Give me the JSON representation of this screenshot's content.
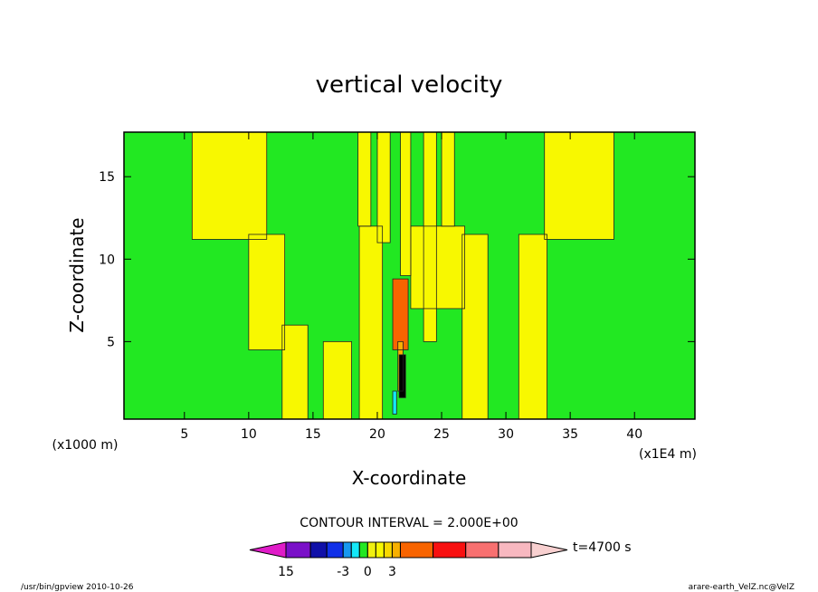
{
  "chart_data": {
    "type": "heatmap",
    "title": "vertical velocity",
    "xlabel": "X-coordinate",
    "ylabel": "Z-coordinate",
    "x_unit": "(x1E4 m)",
    "y_unit": "(x1000 m)",
    "xlim": [
      0.3,
      44.7
    ],
    "ylim": [
      0.3,
      17.7
    ],
    "x_ticks": [
      5,
      10,
      15,
      20,
      25,
      30,
      35,
      40
    ],
    "y_ticks": [
      5,
      10,
      15
    ],
    "contour_interval_label": "CONTOUR INTERVAL = 2.000E+00",
    "colorbar_labels": [
      {
        "text": "-3",
        "value": -3
      },
      {
        "text": "0",
        "value": 0
      },
      {
        "text": "3",
        "value": 3
      },
      {
        "text": "15",
        "value": 15
      }
    ],
    "colorbar_levels": [
      {
        "lo": -20,
        "hi": -10,
        "color": "#e01cc8"
      },
      {
        "lo": -10,
        "hi": -7,
        "color": "#7a10c8"
      },
      {
        "lo": -7,
        "hi": -5,
        "color": "#1010a8"
      },
      {
        "lo": -5,
        "hi": -3,
        "color": "#1030e8"
      },
      {
        "lo": -3,
        "hi": -2,
        "color": "#1898f0"
      },
      {
        "lo": -2,
        "hi": -1,
        "color": "#14e8f8"
      },
      {
        "lo": -1,
        "hi": 0,
        "color": "#22e822"
      },
      {
        "lo": 0,
        "hi": 1,
        "color": "#f0f010"
      },
      {
        "lo": 1,
        "hi": 2,
        "color": "#f8f800"
      },
      {
        "lo": 2,
        "hi": 3,
        "color": "#f8d800"
      },
      {
        "lo": 3,
        "hi": 4,
        "color": "#f8b000"
      },
      {
        "lo": 4,
        "hi": 8,
        "color": "#f86400"
      },
      {
        "lo": 8,
        "hi": 12,
        "color": "#f81010"
      },
      {
        "lo": 12,
        "hi": 16,
        "color": "#f87070"
      },
      {
        "lo": 16,
        "hi": 20,
        "color": "#f8b8c0"
      },
      {
        "lo": 20,
        "hi": 30,
        "color": "#f8d0d0"
      }
    ],
    "regions": [
      {
        "x0": 0.3,
        "x1": 44.7,
        "z0": 0.3,
        "z1": 17.7,
        "color": "#22e822"
      },
      {
        "x0": 5.6,
        "x1": 11.4,
        "z0": 11.2,
        "z1": 17.7,
        "color": "#f8f800"
      },
      {
        "x0": 10.0,
        "x1": 12.8,
        "z0": 4.5,
        "z1": 11.5,
        "color": "#f8f800"
      },
      {
        "x0": 12.6,
        "x1": 14.6,
        "z0": 0.3,
        "z1": 6.0,
        "color": "#f8f800"
      },
      {
        "x0": 15.8,
        "x1": 18.0,
        "z0": 0.3,
        "z1": 5.0,
        "color": "#f8f800"
      },
      {
        "x0": 18.6,
        "x1": 20.4,
        "z0": 0.3,
        "z1": 12.0,
        "color": "#f8f800"
      },
      {
        "x0": 23.6,
        "x1": 24.6,
        "z0": 5.0,
        "z1": 17.7,
        "color": "#f8f800"
      },
      {
        "x0": 22.6,
        "x1": 26.8,
        "z0": 7.0,
        "z1": 12.0,
        "color": "#f8f800"
      },
      {
        "x0": 26.6,
        "x1": 28.6,
        "z0": 0.3,
        "z1": 11.5,
        "color": "#f8f800"
      },
      {
        "x0": 31.0,
        "x1": 33.2,
        "z0": 0.3,
        "z1": 11.5,
        "color": "#f8f800"
      },
      {
        "x0": 33.0,
        "x1": 38.4,
        "z0": 11.2,
        "z1": 17.7,
        "color": "#f8f800"
      },
      {
        "x0": 18.5,
        "x1": 19.5,
        "z0": 12.0,
        "z1": 17.7,
        "color": "#f8f800"
      },
      {
        "x0": 20.0,
        "x1": 21.0,
        "z0": 11.0,
        "z1": 17.7,
        "color": "#f8f800"
      },
      {
        "x0": 21.8,
        "x1": 22.6,
        "z0": 9.0,
        "z1": 17.7,
        "color": "#f8f800"
      },
      {
        "x0": 25.0,
        "x1": 26.0,
        "z0": 12.0,
        "z1": 17.7,
        "color": "#f8f800"
      },
      {
        "x0": 21.2,
        "x1": 22.4,
        "z0": 4.5,
        "z1": 8.8,
        "color": "#f86400"
      },
      {
        "x0": 21.6,
        "x1": 22.0,
        "z0": 2.0,
        "z1": 5.0,
        "color": "#f8b000"
      },
      {
        "x0": 21.2,
        "x1": 21.5,
        "z0": 0.6,
        "z1": 2.0,
        "color": "#14e8f8"
      },
      {
        "x0": 21.7,
        "x1": 22.2,
        "z0": 1.6,
        "z1": 4.2,
        "color": "#000000"
      }
    ]
  },
  "footer": {
    "left": "/usr/bin/gpview   2010-10-26",
    "right": "arare-earth_VelZ.nc@VelZ",
    "time": "t=4700 s"
  }
}
